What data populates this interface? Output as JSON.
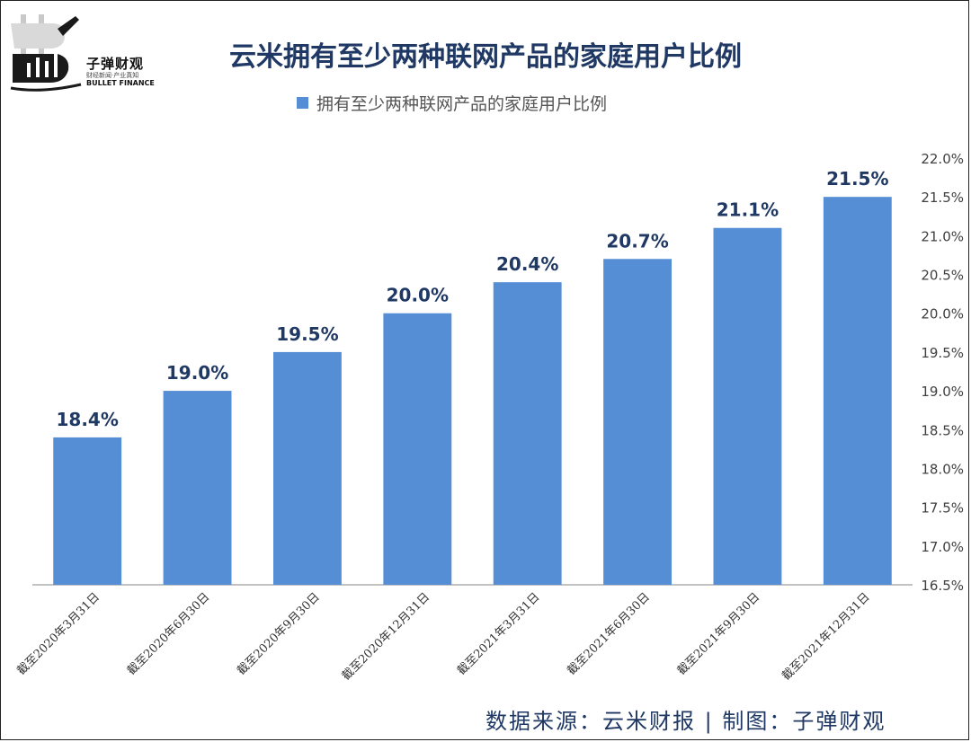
{
  "logo": {
    "name": "子弹财观",
    "tagline": "财经新闻·产业真知",
    "english": "BULLET FINANCE"
  },
  "legend": {
    "label": "拥有至少两种联网产品的家庭用户比例",
    "color": "#558ed5"
  },
  "footer": {
    "source": "数据来源：云米财报  |  制图：子弹财观"
  },
  "chart_data": {
    "type": "bar",
    "title": "云米拥有至少两种联网产品的家庭用户比例",
    "categories": [
      "截至2020年3月31日",
      "截至2020年6月30日",
      "截至2020年9月30日",
      "截至2020年12月31日",
      "截至2021年3月31日",
      "截至2021年6月30日",
      "截至2021年9月30日",
      "截至2021年12月31日"
    ],
    "series": [
      {
        "name": "拥有至少两种联网产品的家庭用户比例",
        "values": [
          18.4,
          19.0,
          19.5,
          20.0,
          20.4,
          20.7,
          21.1,
          21.5
        ]
      }
    ],
    "data_labels": [
      "18.4%",
      "19.0%",
      "19.5%",
      "20.0%",
      "20.4%",
      "20.7%",
      "21.1%",
      "21.5%"
    ],
    "ylim": [
      16.5,
      22.0
    ],
    "y_ticks": [
      16.5,
      17.0,
      17.5,
      18.0,
      18.5,
      19.0,
      19.5,
      20.0,
      20.5,
      21.0,
      21.5,
      22.0
    ],
    "y_tick_labels": [
      "16.5%",
      "17.0%",
      "17.5%",
      "18.0%",
      "18.5%",
      "19.0%",
      "19.5%",
      "20.0%",
      "20.5%",
      "21.0%",
      "21.5%",
      "22.0%"
    ],
    "y_axis_side": "right",
    "grid": false,
    "legend_position": "top",
    "bar_color": "#558ed5",
    "label_color": "#1f3864"
  }
}
